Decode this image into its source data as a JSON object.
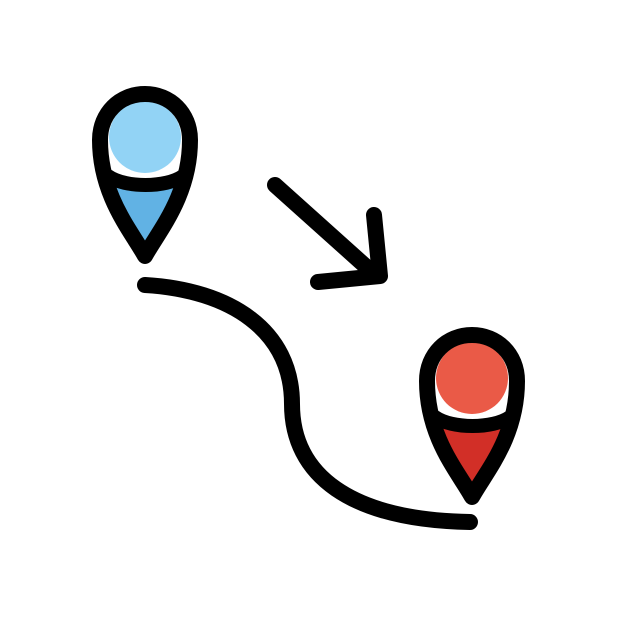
{
  "icon": {
    "name": "route-from-start-to-destination-icon",
    "colors": {
      "background": "#ffffff",
      "outline": "#000000",
      "start_pin_head": "#92d3f5",
      "start_pin_tip": "#61b2e4",
      "end_pin_head": "#ea5a47",
      "end_pin_tip": "#d22f27"
    },
    "parts": {
      "start_pin": "map-pin-icon",
      "end_pin": "map-pin-icon",
      "path": "route-path",
      "arrow": "arrow-down-right-icon"
    }
  }
}
